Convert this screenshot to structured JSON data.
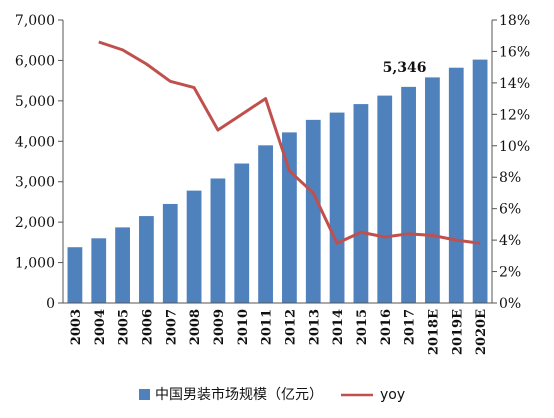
{
  "chart_data": {
    "type": "bar",
    "categories": [
      "2003",
      "2004",
      "2005",
      "2006",
      "2007",
      "2008",
      "2009",
      "2010",
      "2011",
      "2012",
      "2013",
      "2014",
      "2015",
      "2016",
      "2017",
      "2018E",
      "2019E",
      "2020E"
    ],
    "series": [
      {
        "name": "中国男装市场规模（亿元）",
        "type": "bar",
        "axis": "left",
        "color": "#4f81bd",
        "values": [
          1380,
          1600,
          1870,
          2150,
          2450,
          2780,
          3080,
          3450,
          3900,
          4220,
          4530,
          4710,
          4920,
          5130,
          5346,
          5580,
          5820,
          6020
        ]
      },
      {
        "name": "yoy",
        "type": "line",
        "axis": "right",
        "color": "#c0504d",
        "values": [
          null,
          16.6,
          16.1,
          15.2,
          14.1,
          13.7,
          11.0,
          12.0,
          13.0,
          8.4,
          7.0,
          3.8,
          4.5,
          4.2,
          4.4,
          4.3,
          4.0,
          3.8
        ]
      }
    ],
    "y_left": {
      "ylim": [
        0,
        7000
      ],
      "ticks": [
        0,
        1000,
        2000,
        3000,
        4000,
        5000,
        6000,
        7000
      ],
      "tick_labels": [
        "0",
        "1,000",
        "2,000",
        "3,000",
        "4,000",
        "5,000",
        "6,000",
        "7,000"
      ]
    },
    "y_right": {
      "ylim": [
        0,
        18
      ],
      "ticks": [
        0,
        2,
        4,
        6,
        8,
        10,
        12,
        14,
        16,
        18
      ],
      "tick_labels": [
        "0%",
        "2%",
        "4%",
        "6%",
        "8%",
        "10%",
        "12%",
        "14%",
        "16%",
        "18%"
      ]
    },
    "annotations": [
      {
        "category": "2017",
        "text": "5,346"
      }
    ],
    "grid": false,
    "legend": {
      "position": "bottom",
      "items": [
        "中国男装市场规模（亿元）",
        "yoy"
      ]
    }
  }
}
